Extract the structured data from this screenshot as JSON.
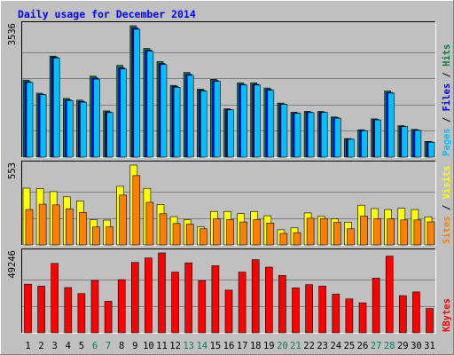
{
  "chart_data": {
    "type": "bar",
    "title": "Daily usage for December 2014",
    "categories": [
      "1",
      "2",
      "3",
      "4",
      "5",
      "6",
      "7",
      "8",
      "9",
      "10",
      "11",
      "12",
      "13",
      "14",
      "15",
      "16",
      "17",
      "18",
      "19",
      "20",
      "21",
      "22",
      "23",
      "24",
      "25",
      "26",
      "27",
      "28",
      "29",
      "30",
      "31"
    ],
    "weekend_days": [
      "6",
      "7",
      "13",
      "14",
      "20",
      "21",
      "27",
      "28"
    ],
    "panels": [
      {
        "ymax_label": "3536",
        "ymax": 3536,
        "right_label": [
          "Pages",
          "Files",
          "Hits"
        ],
        "right_colors": [
          "#00c0ff",
          "#0000ff",
          "#008040"
        ],
        "series": [
          {
            "name": "Hits",
            "color": "#008040",
            "values": [
              2075,
              1720,
              2720,
              1580,
              1535,
              2180,
              1245,
              2470,
              3536,
              2925,
              2570,
              1930,
              2280,
              1830,
              2095,
              1300,
              2000,
              2000,
              1860,
              1455,
              1210,
              1230,
              1230,
              1080,
              500,
              735,
              1030,
              1780,
              845,
              745,
              420
            ]
          },
          {
            "name": "Files",
            "color": "#0000ff",
            "values": [
              2030,
              1690,
              2690,
              1540,
              1500,
              2130,
              1215,
              2400,
              3480,
              2880,
              2520,
              1900,
              2230,
              1800,
              2060,
              1280,
              1960,
              1960,
              1820,
              1430,
              1190,
              1210,
              1210,
              1060,
              490,
              720,
              1010,
              1740,
              830,
              730,
              410
            ]
          },
          {
            "name": "Pages",
            "color": "#00c0ff",
            "values": [
              2010,
              1680,
              2670,
              1520,
              1480,
              2100,
              1200,
              2370,
              3440,
              2850,
              2490,
              1880,
              2200,
              1780,
              2040,
              1270,
              1940,
              1940,
              1800,
              1420,
              1180,
              1200,
              1200,
              1050,
              480,
              710,
              1000,
              1720,
              820,
              720,
              400
            ]
          }
        ]
      },
      {
        "ymax_label": "553",
        "ymax": 553,
        "right_label": [
          "Sites",
          "Visits"
        ],
        "right_colors": [
          "#ff8000",
          "#ffff00"
        ],
        "series": [
          {
            "name": "Visits",
            "color": "#ffff00",
            "values": [
              393,
              390,
              369,
              333,
              305,
              174,
              172,
              406,
              553,
              392,
              281,
              196,
              176,
              125,
              232,
              232,
              217,
              232,
              202,
              105,
              118,
              222,
              198,
              181,
              158,
              275,
              252,
              245,
              254,
              245,
              195
            ]
          },
          {
            "name": "Sites",
            "color": "#ff8000",
            "values": [
              245,
              282,
              277,
              250,
              225,
              125,
              125,
              345,
              480,
              295,
              216,
              149,
              144,
              112,
              180,
              175,
              159,
              175,
              152,
              80,
              85,
              185,
              183,
              156,
              112,
              200,
              181,
              180,
              173,
              173,
              160
            ]
          }
        ]
      },
      {
        "ymax_label": "49246",
        "ymax": 49246,
        "right_label": [
          "KBytes"
        ],
        "right_colors": [
          "#ff0000"
        ],
        "series": [
          {
            "name": "KBytes",
            "color": "#ff0000",
            "values": [
              30000,
              28800,
              42800,
              27900,
              24200,
              32300,
              19500,
              32800,
              43400,
              46100,
              49246,
              37400,
              43100,
              32200,
              41400,
              26300,
              37400,
              45100,
              40500,
              35400,
              27700,
              29700,
              28800,
              23900,
              20900,
              18500,
              33700,
              47300,
              22900,
              25200,
              15000
            ]
          }
        ]
      }
    ],
    "xlabel": "",
    "ylabel": "",
    "grid": true
  }
}
